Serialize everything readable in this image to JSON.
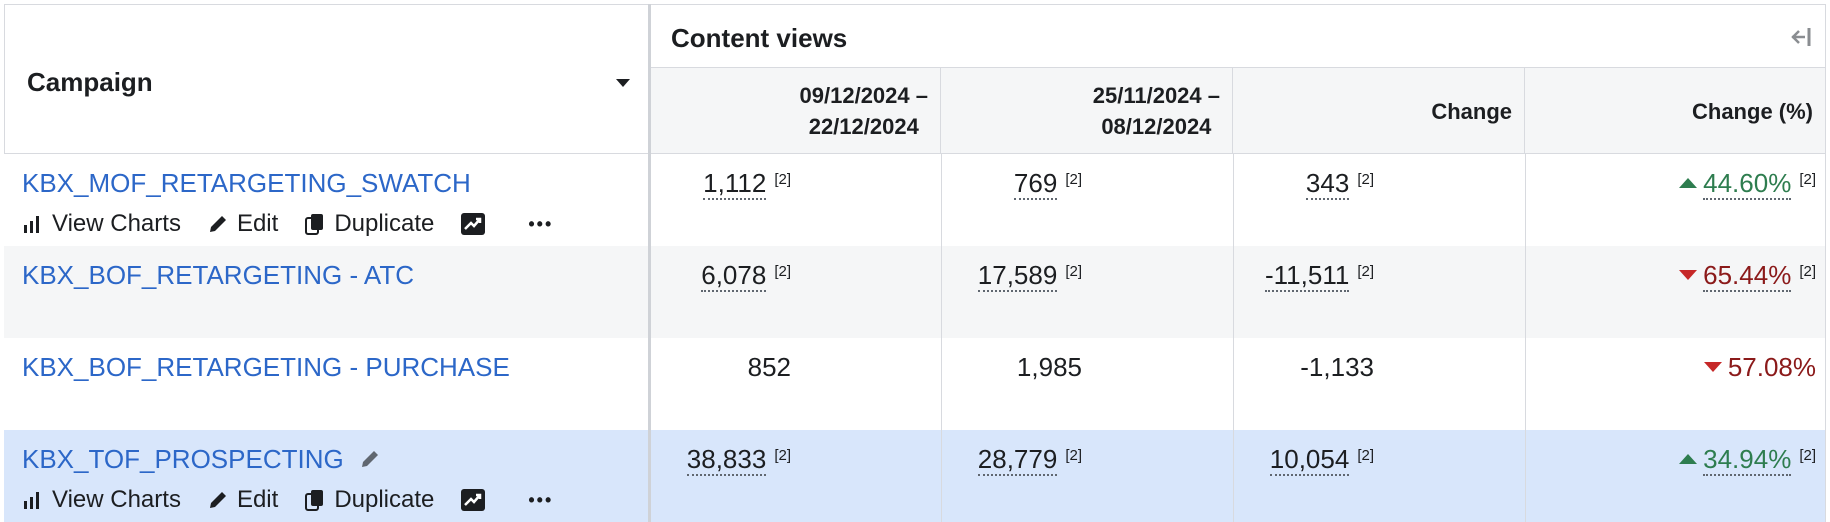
{
  "header": {
    "campaign_label": "Campaign",
    "group_label": "Content views",
    "collapse_icon": "collapse-left-icon",
    "columns": [
      {
        "line1": "09/12/2024 –",
        "line2": "22/12/2024"
      },
      {
        "line1": "25/11/2024 –",
        "line2": "08/12/2024"
      },
      {
        "line1": "Change",
        "line2": ""
      },
      {
        "line1": "Change (%)",
        "line2": ""
      }
    ]
  },
  "actions": {
    "view_charts": "View Charts",
    "edit": "Edit",
    "duplicate": "Duplicate",
    "more": "•••"
  },
  "colors": {
    "link": "#2c67c8",
    "row_alt": "#f5f6f7",
    "row_selected": "#d8e6fb",
    "positive": "#2e7d4f",
    "negative": "#8b1a1a"
  },
  "rows": [
    {
      "name": "KBX_MOF_RETARGETING_SWATCH",
      "v1": "1,112",
      "v2": "769",
      "change": "343",
      "pct": "44.60%",
      "dir": "up",
      "sup": "[2]",
      "show_actions": true
    },
    {
      "name": "KBX_BOF_RETARGETING - ATC",
      "v1": "6,078",
      "v2": "17,589",
      "change": "-11,511",
      "pct": "65.44%",
      "dir": "down",
      "sup": "[2]",
      "show_actions": false
    },
    {
      "name": "KBX_BOF_RETARGETING - PURCHASE",
      "v1": "852",
      "v2": "1,985",
      "change": "-1,133",
      "pct": "57.08%",
      "dir": "down",
      "sup": "",
      "show_actions": false
    },
    {
      "name": "KBX_TOF_PROSPECTING",
      "v1": "38,833",
      "v2": "28,779",
      "change": "10,054",
      "pct": "34.94%",
      "dir": "up",
      "sup": "[2]",
      "show_actions": true
    }
  ]
}
